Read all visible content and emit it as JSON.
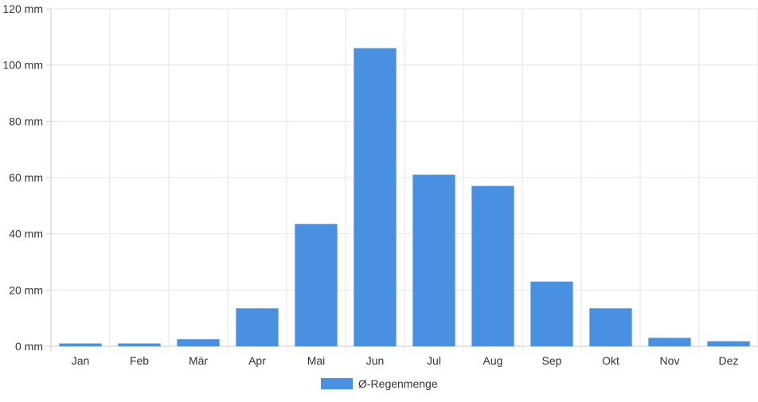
{
  "chart_data": {
    "type": "bar",
    "categories": [
      "Jan",
      "Feb",
      "Mär",
      "Apr",
      "Mai",
      "Jun",
      "Jul",
      "Aug",
      "Sep",
      "Okt",
      "Nov",
      "Dez"
    ],
    "series": [
      {
        "name": "Ø-Regenmenge",
        "color": "#4a90e2",
        "values": [
          1,
          1,
          2.5,
          13.5,
          43.5,
          106,
          61,
          57,
          23,
          13.5,
          3,
          1.8
        ]
      }
    ],
    "y_unit": "mm",
    "ylim": [
      0,
      120
    ],
    "y_ticks": [
      "0 mm",
      "20 mm",
      "40 mm",
      "60 mm",
      "80 mm",
      "100 mm",
      "120 mm"
    ],
    "grid": true,
    "legend_position": "bottom-center"
  }
}
